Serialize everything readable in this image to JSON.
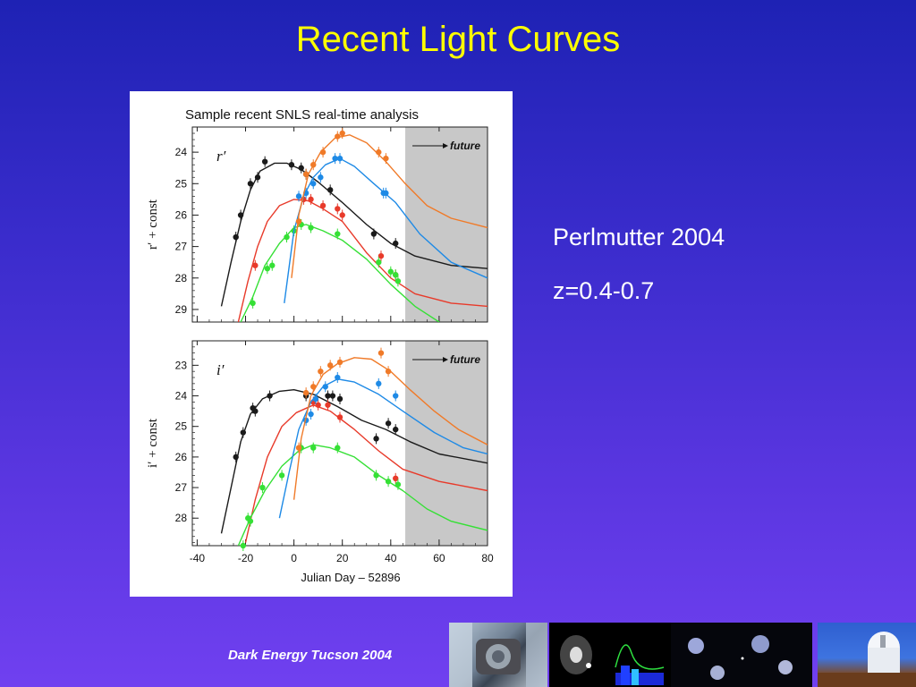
{
  "slide": {
    "title": "Recent Light Curves",
    "info_lines": [
      "Perlmutter 2004",
      "z=0.4-0.7"
    ],
    "footer": "Dark Energy Tucson 2004"
  },
  "colors": {
    "black": "#1a1a1a",
    "red": "#e83a2a",
    "green": "#35e035",
    "blue": "#1e8ae6",
    "orange": "#f07a28",
    "future_shade": "#c8c8c8"
  },
  "chart_data": {
    "type": "scatter",
    "title": "Sample recent SNLS real-time analysis",
    "xlabel": "Julian Day – 52896",
    "xlim": [
      -42,
      80
    ],
    "x_ticks": [
      -40,
      -20,
      0,
      20,
      40,
      60,
      80
    ],
    "future_start": 46,
    "future_label": "future",
    "panels": [
      {
        "band": "r′",
        "ylabel": "r′ + const",
        "ylim": [
          23.2,
          29.4
        ],
        "y_ticks": [
          24,
          25,
          26,
          27,
          28,
          29
        ],
        "series": [
          {
            "color_key": "black",
            "points": [
              [
                -24,
                26.7
              ],
              [
                -22,
                26.0
              ],
              [
                -18,
                25.0
              ],
              [
                -15,
                24.8
              ],
              [
                -12,
                24.3
              ],
              [
                -1,
                24.4
              ],
              [
                3,
                24.5
              ],
              [
                5,
                24.7
              ],
              [
                15,
                25.2
              ],
              [
                33,
                26.6
              ],
              [
                42,
                26.9
              ]
            ],
            "curve": [
              [
                -30,
                28.9
              ],
              [
                -26,
                27.5
              ],
              [
                -22,
                26.2
              ],
              [
                -18,
                25.2
              ],
              [
                -14,
                24.6
              ],
              [
                -8,
                24.35
              ],
              [
                -3,
                24.35
              ],
              [
                3,
                24.55
              ],
              [
                10,
                24.95
              ],
              [
                20,
                25.6
              ],
              [
                30,
                26.3
              ],
              [
                40,
                26.9
              ],
              [
                50,
                27.3
              ],
              [
                65,
                27.6
              ],
              [
                80,
                27.7
              ]
            ]
          },
          {
            "color_key": "red",
            "points": [
              [
                -16,
                27.6
              ],
              [
                4,
                25.5
              ],
              [
                7,
                25.5
              ],
              [
                12,
                25.7
              ],
              [
                18,
                25.8
              ],
              [
                20,
                26.0
              ],
              [
                36,
                27.3
              ],
              [
                42,
                27.9
              ]
            ],
            "curve": [
              [
                -23,
                29.4
              ],
              [
                -19,
                28.1
              ],
              [
                -15,
                27.0
              ],
              [
                -11,
                26.2
              ],
              [
                -6,
                25.7
              ],
              [
                0,
                25.5
              ],
              [
                6,
                25.55
              ],
              [
                12,
                25.8
              ],
              [
                20,
                26.2
              ],
              [
                30,
                27.2
              ],
              [
                40,
                28.0
              ],
              [
                50,
                28.5
              ],
              [
                65,
                28.8
              ],
              [
                80,
                28.9
              ]
            ]
          },
          {
            "color_key": "green",
            "points": [
              [
                -17,
                28.8
              ],
              [
                -11,
                27.7
              ],
              [
                -9,
                27.6
              ],
              [
                -3,
                26.7
              ],
              [
                0,
                26.5
              ],
              [
                3,
                26.3
              ],
              [
                7,
                26.4
              ],
              [
                18,
                26.6
              ],
              [
                35,
                27.5
              ],
              [
                40,
                27.8
              ],
              [
                43,
                28.1
              ],
              [
                42,
                27.9
              ]
            ],
            "curve": [
              [
                -22,
                29.4
              ],
              [
                -17,
                28.6
              ],
              [
                -12,
                27.6
              ],
              [
                -6,
                26.9
              ],
              [
                0,
                26.4
              ],
              [
                5,
                26.3
              ],
              [
                12,
                26.5
              ],
              [
                20,
                26.8
              ],
              [
                30,
                27.4
              ],
              [
                40,
                28.2
              ],
              [
                50,
                28.9
              ],
              [
                60,
                29.4
              ]
            ]
          },
          {
            "color_key": "blue",
            "points": [
              [
                2,
                25.4
              ],
              [
                5,
                25.3
              ],
              [
                8,
                25.0
              ],
              [
                11,
                24.8
              ],
              [
                17,
                24.2
              ],
              [
                19,
                24.2
              ],
              [
                37,
                25.3
              ],
              [
                38,
                25.3
              ]
            ],
            "curve": [
              [
                -4,
                28.8
              ],
              [
                0,
                26.5
              ],
              [
                4,
                25.4
              ],
              [
                8,
                24.8
              ],
              [
                13,
                24.4
              ],
              [
                19,
                24.2
              ],
              [
                25,
                24.45
              ],
              [
                33,
                25.0
              ],
              [
                42,
                25.6
              ],
              [
                52,
                26.6
              ],
              [
                65,
                27.5
              ],
              [
                80,
                28.0
              ]
            ]
          },
          {
            "color_key": "orange",
            "points": [
              [
                2,
                26.2
              ],
              [
                5,
                24.7
              ],
              [
                8,
                24.4
              ],
              [
                12,
                24.0
              ],
              [
                18,
                23.5
              ],
              [
                20,
                23.4
              ],
              [
                35,
                24.0
              ],
              [
                38,
                24.2
              ]
            ],
            "curve": [
              [
                -1,
                28.0
              ],
              [
                2,
                26.0
              ],
              [
                6,
                24.7
              ],
              [
                11,
                24.0
              ],
              [
                17,
                23.55
              ],
              [
                23,
                23.45
              ],
              [
                30,
                23.7
              ],
              [
                38,
                24.3
              ],
              [
                46,
                25.0
              ],
              [
                55,
                25.7
              ],
              [
                65,
                26.1
              ],
              [
                80,
                26.4
              ]
            ]
          }
        ]
      },
      {
        "band": "i′",
        "ylabel": "i′ + const",
        "ylim": [
          22.2,
          28.9
        ],
        "y_ticks": [
          23,
          24,
          25,
          26,
          27,
          28
        ],
        "series": [
          {
            "color_key": "black",
            "points": [
              [
                -24,
                26.0
              ],
              [
                -21,
                25.2
              ],
              [
                -17,
                24.4
              ],
              [
                -16,
                24.5
              ],
              [
                -10,
                24.0
              ],
              [
                5,
                24.0
              ],
              [
                14,
                24.0
              ],
              [
                16,
                24.0
              ],
              [
                19,
                24.1
              ],
              [
                34,
                25.4
              ],
              [
                39,
                24.9
              ],
              [
                42,
                25.1
              ]
            ],
            "curve": [
              [
                -30,
                28.5
              ],
              [
                -26,
                27.0
              ],
              [
                -22,
                25.5
              ],
              [
                -18,
                24.6
              ],
              [
                -13,
                24.1
              ],
              [
                -6,
                23.85
              ],
              [
                0,
                23.8
              ],
              [
                8,
                23.95
              ],
              [
                18,
                24.35
              ],
              [
                28,
                24.8
              ],
              [
                38,
                25.1
              ],
              [
                48,
                25.5
              ],
              [
                60,
                25.9
              ],
              [
                80,
                26.2
              ]
            ]
          },
          {
            "color_key": "red",
            "points": [
              [
                8,
                24.2
              ],
              [
                10,
                24.3
              ],
              [
                14,
                24.3
              ],
              [
                19,
                24.7
              ],
              [
                42,
                26.7
              ]
            ],
            "curve": [
              [
                -20,
                28.8
              ],
              [
                -16,
                27.4
              ],
              [
                -11,
                26.0
              ],
              [
                -5,
                25.0
              ],
              [
                1,
                24.55
              ],
              [
                8,
                24.3
              ],
              [
                15,
                24.5
              ],
              [
                25,
                25.1
              ],
              [
                35,
                25.8
              ],
              [
                45,
                26.4
              ],
              [
                60,
                26.8
              ],
              [
                80,
                27.1
              ]
            ]
          },
          {
            "color_key": "green",
            "points": [
              [
                -21,
                28.9
              ],
              [
                -19,
                28.0
              ],
              [
                -18,
                28.1
              ],
              [
                -13,
                27.0
              ],
              [
                -5,
                26.6
              ],
              [
                3,
                25.7
              ],
              [
                8,
                25.7
              ],
              [
                18,
                25.7
              ],
              [
                34,
                26.6
              ],
              [
                39,
                26.8
              ],
              [
                43,
                26.9
              ]
            ],
            "curve": [
              [
                -23,
                28.9
              ],
              [
                -18,
                28.0
              ],
              [
                -12,
                27.1
              ],
              [
                -5,
                26.3
              ],
              [
                2,
                25.8
              ],
              [
                8,
                25.6
              ],
              [
                15,
                25.7
              ],
              [
                25,
                26.0
              ],
              [
                35,
                26.6
              ],
              [
                45,
                27.1
              ],
              [
                55,
                27.7
              ],
              [
                65,
                28.1
              ],
              [
                80,
                28.4
              ]
            ]
          },
          {
            "color_key": "blue",
            "points": [
              [
                5,
                24.8
              ],
              [
                7,
                24.6
              ],
              [
                9,
                24.1
              ],
              [
                13,
                23.7
              ],
              [
                18,
                23.4
              ],
              [
                35,
                23.6
              ],
              [
                42,
                24.0
              ]
            ],
            "curve": [
              [
                -6,
                28.0
              ],
              [
                -2,
                26.5
              ],
              [
                2,
                25.1
              ],
              [
                7,
                24.2
              ],
              [
                12,
                23.7
              ],
              [
                18,
                23.45
              ],
              [
                25,
                23.55
              ],
              [
                35,
                23.95
              ],
              [
                45,
                24.5
              ],
              [
                58,
                25.2
              ],
              [
                70,
                25.7
              ],
              [
                80,
                25.9
              ]
            ]
          },
          {
            "color_key": "orange",
            "points": [
              [
                2,
                25.7
              ],
              [
                5,
                23.9
              ],
              [
                8,
                23.7
              ],
              [
                11,
                23.2
              ],
              [
                15,
                23.0
              ],
              [
                19,
                22.9
              ],
              [
                36,
                22.6
              ],
              [
                39,
                23.2
              ]
            ],
            "curve": [
              [
                0,
                27.4
              ],
              [
                3,
                25.4
              ],
              [
                7,
                24.0
              ],
              [
                12,
                23.3
              ],
              [
                18,
                22.95
              ],
              [
                25,
                22.75
              ],
              [
                32,
                22.8
              ],
              [
                40,
                23.2
              ],
              [
                48,
                23.8
              ],
              [
                58,
                24.5
              ],
              [
                68,
                25.1
              ],
              [
                80,
                25.6
              ]
            ]
          }
        ]
      }
    ]
  }
}
